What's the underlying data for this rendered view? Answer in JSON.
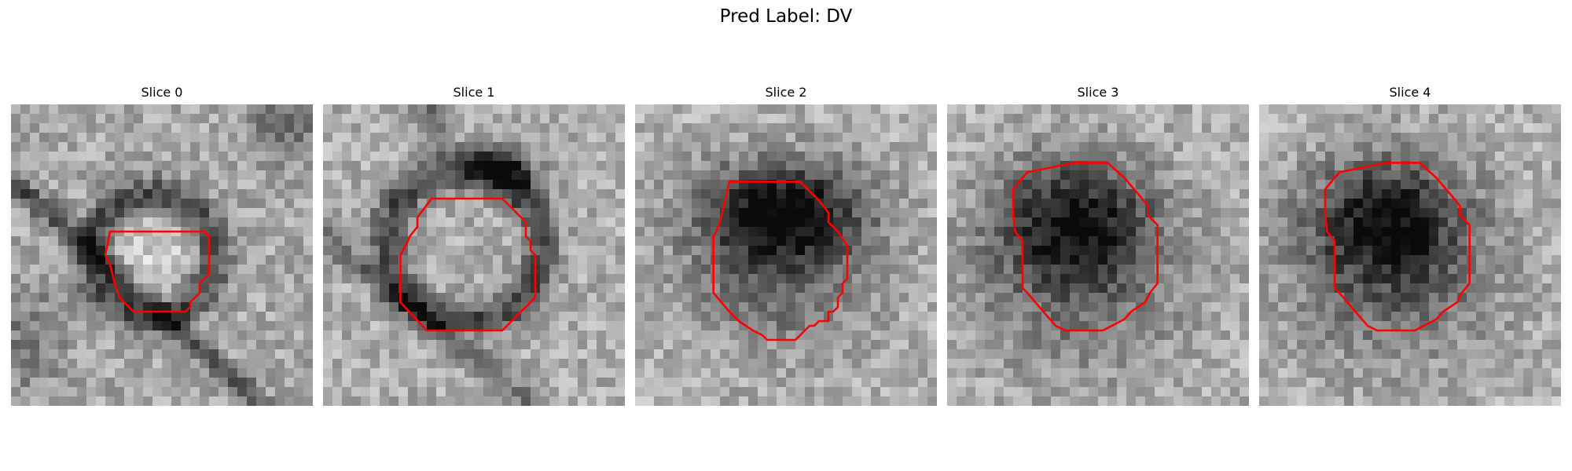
{
  "figure": {
    "title": "Pred Label: DV"
  },
  "panels": [
    {
      "title": "Slice 0",
      "contour_color": "#ff0000"
    },
    {
      "title": "Slice 1",
      "contour_color": "#ff0000"
    },
    {
      "title": "Slice 2",
      "contour_color": "#ff0000"
    },
    {
      "title": "Slice 3",
      "contour_color": "#ff0000"
    },
    {
      "title": "Slice 4",
      "contour_color": "#ff0000"
    }
  ],
  "colormap": "grayscale",
  "grid_size": 32
}
